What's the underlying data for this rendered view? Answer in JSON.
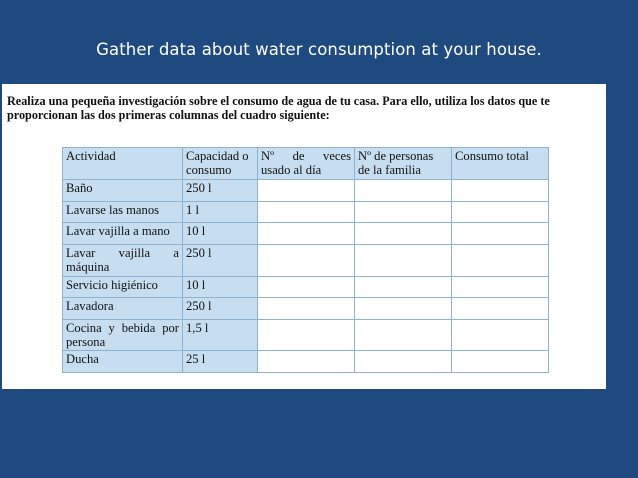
{
  "slide": {
    "title": "Gather data about water consumption at your house."
  },
  "worksheet": {
    "intro_line1": "Realiza una pequeña investigación sobre el consumo de agua de tu casa. Para ello, utiliza los datos que te",
    "intro_line2": "proporcionan las dos primeras columnas del cuadro siguiente:",
    "headers": {
      "actividad": "Actividad",
      "capacidad_l1": "Capacidad o",
      "capacidad_l2": "consumo",
      "veces_l1": "Nº de veces",
      "veces_l2": "usado al día",
      "personas_l1": "Nº de personas",
      "personas_l2": "de la familia",
      "total": "Consumo total"
    },
    "rows": [
      {
        "actividad": "Baño",
        "capacidad": "250 l"
      },
      {
        "actividad": "Lavarse las manos",
        "capacidad": "1 l"
      },
      {
        "actividad": "Lavar vajilla a mano",
        "capacidad": "10 l"
      },
      {
        "actividad_l1": "Lavar vajilla a",
        "actividad_l2": "máquina",
        "capacidad": "250 l"
      },
      {
        "actividad": "Servicio higiénico",
        "capacidad": "10 l"
      },
      {
        "actividad": "Lavadora",
        "capacidad": "250 l"
      },
      {
        "actividad_l1": "Cocina y bebida por",
        "actividad_l2": "persona",
        "capacidad": "1,5 l"
      },
      {
        "actividad": "Ducha",
        "capacidad": "25 l"
      }
    ]
  }
}
